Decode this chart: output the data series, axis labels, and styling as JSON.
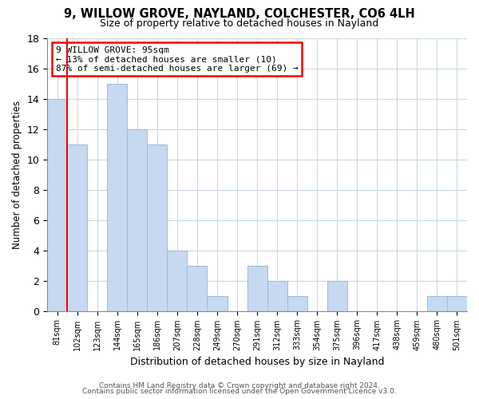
{
  "title": "9, WILLOW GROVE, NAYLAND, COLCHESTER, CO6 4LH",
  "subtitle": "Size of property relative to detached houses in Nayland",
  "xlabel": "Distribution of detached houses by size in Nayland",
  "ylabel": "Number of detached properties",
  "bar_labels": [
    "81sqm",
    "102sqm",
    "123sqm",
    "144sqm",
    "165sqm",
    "186sqm",
    "207sqm",
    "228sqm",
    "249sqm",
    "270sqm",
    "291sqm",
    "312sqm",
    "333sqm",
    "354sqm",
    "375sqm",
    "396sqm",
    "417sqm",
    "438sqm",
    "459sqm",
    "480sqm",
    "501sqm"
  ],
  "bar_values": [
    14,
    11,
    0,
    15,
    12,
    11,
    4,
    3,
    1,
    0,
    3,
    2,
    1,
    0,
    2,
    0,
    0,
    0,
    0,
    1,
    1
  ],
  "bar_color": "#c6d9f0",
  "bar_edge_color": "#a0b8d8",
  "red_line_x": 0.5,
  "ylim": [
    0,
    18
  ],
  "yticks": [
    0,
    2,
    4,
    6,
    8,
    10,
    12,
    14,
    16,
    18
  ],
  "annotation_line1": "9 WILLOW GROVE: 95sqm",
  "annotation_line2": "← 13% of detached houses are smaller (10)",
  "annotation_line3": "87% of semi-detached houses are larger (69) →",
  "footer_line1": "Contains HM Land Registry data © Crown copyright and database right 2024.",
  "footer_line2": "Contains public sector information licensed under the Open Government Licence v3.0.",
  "background_color": "#ffffff",
  "grid_color": "#c8d8e8"
}
